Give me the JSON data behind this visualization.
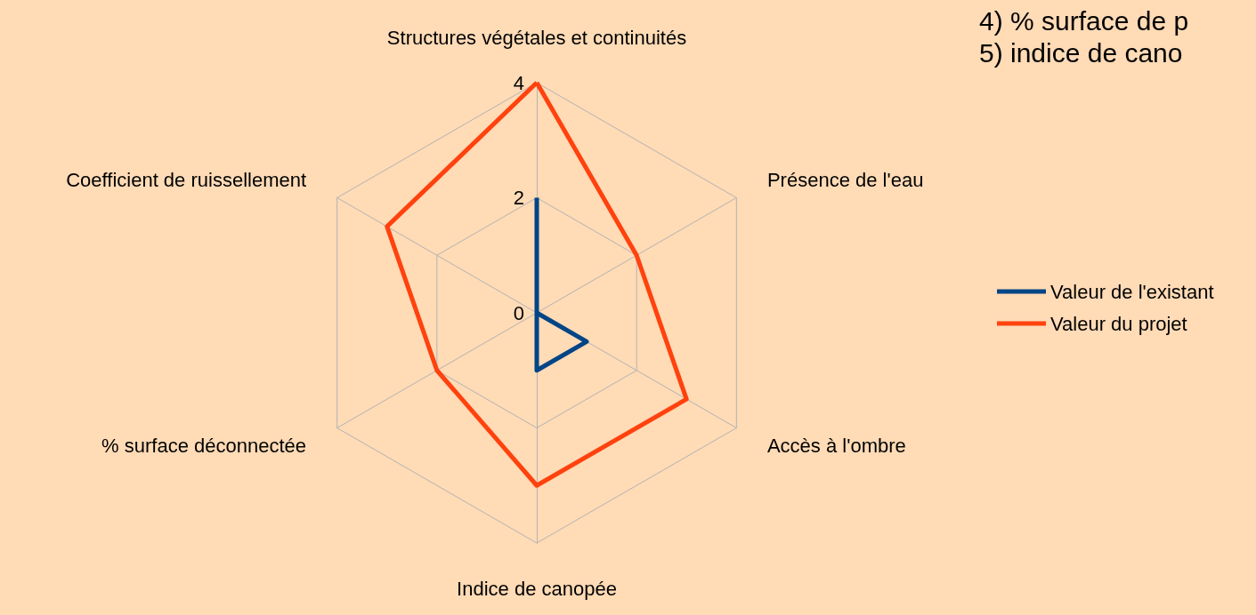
{
  "chart_data": {
    "type": "radar",
    "categories": [
      "Structures végétales et continuités",
      "Présence de l'eau",
      "Accès à l'ombre",
      "Indice de canopée",
      "% surface déconnectée",
      "Coefficient de ruissellement"
    ],
    "series": [
      {
        "name": "Valeur de l'existant",
        "color": "#004586",
        "values": [
          2,
          0,
          1,
          1,
          0,
          0
        ]
      },
      {
        "name": "Valeur du projet",
        "color": "#ff420e",
        "values": [
          4,
          2,
          3,
          3,
          2,
          3
        ]
      }
    ],
    "ylim": [
      0,
      4
    ],
    "yticks": [
      0,
      2,
      4
    ],
    "legend": "right",
    "marker": "none",
    "line_style": "solid",
    "grid": true,
    "annotations": [
      "4) % surface de p",
      "5) indice de cano"
    ]
  }
}
